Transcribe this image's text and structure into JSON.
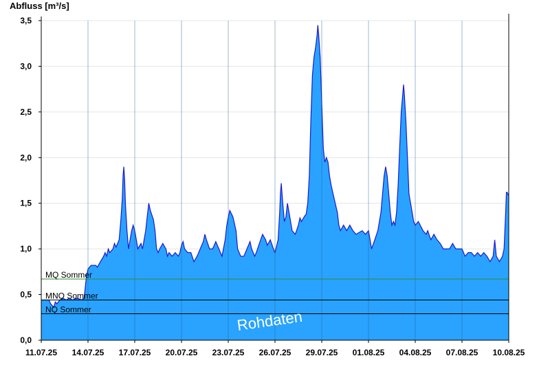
{
  "chart_data": {
    "type": "area",
    "title": "",
    "ylabel": "Abfluss [m³/s]",
    "xlabel": "",
    "ylim": [
      0,
      3.5
    ],
    "y_ticks": [
      "0,0",
      "0,5",
      "1,0",
      "1,5",
      "2,0",
      "2,5",
      "3,0",
      "3,5"
    ],
    "y_tick_values": [
      0,
      0.5,
      1.0,
      1.5,
      2.0,
      2.5,
      3.0,
      3.5
    ],
    "x_start": "11.07.25",
    "x_end": "10.08.25",
    "x_ticks": [
      "11.07.25",
      "14.07.25",
      "17.07.25",
      "20.07.25",
      "23.07.25",
      "26.07.25",
      "29.07.25",
      "01.08.25",
      "04.08.25",
      "07.08.25",
      "10.08.25"
    ],
    "x_tick_day_offsets": [
      0,
      3,
      6,
      9,
      12,
      15,
      18,
      21,
      24,
      27,
      30
    ],
    "grid": true,
    "fill_color": "#29a3ff",
    "line_color": "#1a1acc",
    "reference_lines": [
      {
        "label": "MQ Sommer",
        "value": 0.67,
        "color": "#2e8b2e"
      },
      {
        "label": "MNQ Sommer",
        "value": 0.44,
        "color": "#000000"
      },
      {
        "label": "NQ Sommer",
        "value": 0.29,
        "color": "#000000"
      }
    ],
    "annotation": "Rohdaten",
    "series": [
      {
        "values": [
          [
            0.0,
            0.44
          ],
          [
            0.5,
            0.44
          ],
          [
            0.6,
            0.4
          ],
          [
            0.8,
            0.36
          ],
          [
            0.9,
            0.42
          ],
          [
            1.0,
            0.4
          ],
          [
            1.2,
            0.44
          ],
          [
            1.4,
            0.46
          ],
          [
            1.6,
            0.44
          ],
          [
            1.8,
            0.46
          ],
          [
            2.0,
            0.44
          ],
          [
            2.3,
            0.46
          ],
          [
            2.6,
            0.44
          ],
          [
            2.75,
            0.46
          ],
          [
            2.85,
            0.62
          ],
          [
            2.9,
            0.7
          ],
          [
            3.0,
            0.78
          ],
          [
            3.2,
            0.82
          ],
          [
            3.5,
            0.82
          ],
          [
            3.6,
            0.8
          ],
          [
            3.8,
            0.86
          ],
          [
            4.0,
            0.92
          ],
          [
            4.1,
            0.96
          ],
          [
            4.2,
            0.92
          ],
          [
            4.3,
            1.0
          ],
          [
            4.4,
            0.96
          ],
          [
            4.6,
            1.0
          ],
          [
            4.7,
            1.06
          ],
          [
            4.8,
            1.02
          ],
          [
            4.9,
            1.06
          ],
          [
            5.0,
            1.1
          ],
          [
            5.1,
            1.3
          ],
          [
            5.2,
            1.55
          ],
          [
            5.25,
            1.8
          ],
          [
            5.3,
            1.9
          ],
          [
            5.35,
            1.75
          ],
          [
            5.4,
            1.5
          ],
          [
            5.5,
            1.2
          ],
          [
            5.6,
            1.0
          ],
          [
            5.7,
            1.1
          ],
          [
            5.8,
            1.2
          ],
          [
            5.9,
            1.26
          ],
          [
            6.0,
            1.2
          ],
          [
            6.1,
            1.1
          ],
          [
            6.2,
            1.0
          ],
          [
            6.4,
            1.06
          ],
          [
            6.5,
            1.0
          ],
          [
            6.7,
            1.2
          ],
          [
            6.8,
            1.35
          ],
          [
            6.9,
            1.5
          ],
          [
            7.0,
            1.42
          ],
          [
            7.2,
            1.32
          ],
          [
            7.3,
            1.2
          ],
          [
            7.4,
            1.0
          ],
          [
            7.5,
            0.96
          ],
          [
            7.6,
            1.0
          ],
          [
            7.8,
            1.06
          ],
          [
            8.0,
            1.0
          ],
          [
            8.1,
            0.92
          ],
          [
            8.2,
            0.96
          ],
          [
            8.4,
            0.92
          ],
          [
            8.6,
            0.96
          ],
          [
            8.8,
            0.92
          ],
          [
            8.9,
            0.96
          ],
          [
            9.0,
            1.04
          ],
          [
            9.1,
            1.08
          ],
          [
            9.2,
            1.0
          ],
          [
            9.4,
            0.96
          ],
          [
            9.6,
            0.96
          ],
          [
            9.8,
            0.86
          ],
          [
            10.0,
            0.92
          ],
          [
            10.2,
            1.0
          ],
          [
            10.4,
            1.08
          ],
          [
            10.5,
            1.16
          ],
          [
            10.6,
            1.1
          ],
          [
            10.8,
            1.0
          ],
          [
            11.0,
            1.0
          ],
          [
            11.2,
            1.08
          ],
          [
            11.4,
            1.0
          ],
          [
            11.6,
            0.92
          ],
          [
            11.8,
            1.1
          ],
          [
            11.9,
            1.25
          ],
          [
            12.0,
            1.35
          ],
          [
            12.1,
            1.42
          ],
          [
            12.3,
            1.35
          ],
          [
            12.5,
            1.2
          ],
          [
            12.6,
            1.0
          ],
          [
            12.8,
            0.92
          ],
          [
            13.0,
            0.92
          ],
          [
            13.2,
            1.0
          ],
          [
            13.4,
            1.08
          ],
          [
            13.5,
            1.0
          ],
          [
            13.7,
            0.92
          ],
          [
            13.8,
            0.96
          ],
          [
            14.0,
            1.06
          ],
          [
            14.2,
            1.16
          ],
          [
            14.4,
            1.1
          ],
          [
            14.5,
            1.04
          ],
          [
            14.7,
            1.1
          ],
          [
            14.9,
            1.0
          ],
          [
            15.0,
            0.96
          ],
          [
            15.2,
            1.1
          ],
          [
            15.3,
            1.4
          ],
          [
            15.35,
            1.6
          ],
          [
            15.4,
            1.72
          ],
          [
            15.5,
            1.5
          ],
          [
            15.6,
            1.3
          ],
          [
            15.7,
            1.35
          ],
          [
            15.8,
            1.5
          ],
          [
            15.9,
            1.4
          ],
          [
            16.0,
            1.3
          ],
          [
            16.1,
            1.2
          ],
          [
            16.3,
            1.16
          ],
          [
            16.5,
            1.26
          ],
          [
            16.6,
            1.34
          ],
          [
            16.7,
            1.3
          ],
          [
            16.9,
            1.36
          ],
          [
            17.0,
            1.38
          ],
          [
            17.1,
            1.5
          ],
          [
            17.2,
            1.8
          ],
          [
            17.3,
            2.4
          ],
          [
            17.4,
            2.9
          ],
          [
            17.5,
            3.1
          ],
          [
            17.6,
            3.2
          ],
          [
            17.7,
            3.34
          ],
          [
            17.75,
            3.45
          ],
          [
            17.8,
            3.35
          ],
          [
            17.9,
            3.1
          ],
          [
            18.0,
            2.6
          ],
          [
            18.1,
            2.1
          ],
          [
            18.2,
            1.95
          ],
          [
            18.3,
            2.0
          ],
          [
            18.4,
            1.95
          ],
          [
            18.5,
            1.8
          ],
          [
            18.6,
            1.7
          ],
          [
            18.8,
            1.55
          ],
          [
            19.0,
            1.4
          ],
          [
            19.1,
            1.26
          ],
          [
            19.2,
            1.2
          ],
          [
            19.4,
            1.26
          ],
          [
            19.6,
            1.2
          ],
          [
            19.8,
            1.26
          ],
          [
            20.0,
            1.2
          ],
          [
            20.2,
            1.16
          ],
          [
            20.6,
            1.2
          ],
          [
            20.8,
            1.16
          ],
          [
            21.0,
            1.2
          ],
          [
            21.1,
            1.1
          ],
          [
            21.2,
            1.0
          ],
          [
            21.4,
            1.1
          ],
          [
            21.6,
            1.2
          ],
          [
            21.8,
            1.4
          ],
          [
            21.9,
            1.6
          ],
          [
            22.0,
            1.8
          ],
          [
            22.1,
            1.9
          ],
          [
            22.2,
            1.8
          ],
          [
            22.3,
            1.6
          ],
          [
            22.4,
            1.4
          ],
          [
            22.5,
            1.26
          ],
          [
            22.6,
            1.3
          ],
          [
            22.7,
            1.26
          ],
          [
            22.8,
            1.4
          ],
          [
            22.9,
            1.7
          ],
          [
            23.0,
            2.1
          ],
          [
            23.1,
            2.5
          ],
          [
            23.2,
            2.7
          ],
          [
            23.25,
            2.8
          ],
          [
            23.3,
            2.7
          ],
          [
            23.4,
            2.4
          ],
          [
            23.5,
            2.0
          ],
          [
            23.6,
            1.6
          ],
          [
            23.8,
            1.4
          ],
          [
            23.9,
            1.3
          ],
          [
            24.0,
            1.26
          ],
          [
            24.2,
            1.3
          ],
          [
            24.5,
            1.2
          ],
          [
            24.7,
            1.16
          ],
          [
            24.8,
            1.2
          ],
          [
            25.0,
            1.1
          ],
          [
            25.2,
            1.16
          ],
          [
            25.4,
            1.1
          ],
          [
            25.6,
            1.06
          ],
          [
            25.8,
            1.0
          ],
          [
            26.0,
            1.0
          ],
          [
            26.2,
            1.0
          ],
          [
            26.4,
            1.06
          ],
          [
            26.6,
            1.0
          ],
          [
            26.8,
            1.0
          ],
          [
            27.0,
            1.0
          ],
          [
            27.2,
            0.92
          ],
          [
            27.4,
            0.96
          ],
          [
            27.6,
            0.96
          ],
          [
            27.8,
            0.92
          ],
          [
            28.0,
            0.96
          ],
          [
            28.2,
            0.92
          ],
          [
            28.4,
            0.96
          ],
          [
            28.6,
            0.92
          ],
          [
            28.8,
            0.86
          ],
          [
            29.0,
            0.92
          ],
          [
            29.1,
            1.1
          ],
          [
            29.2,
            0.92
          ],
          [
            29.4,
            0.86
          ],
          [
            29.6,
            0.92
          ],
          [
            29.7,
            1.0
          ],
          [
            29.8,
            1.4
          ],
          [
            29.85,
            1.62
          ],
          [
            29.9,
            1.62
          ],
          [
            30.0,
            1.58
          ]
        ]
      }
    ]
  }
}
